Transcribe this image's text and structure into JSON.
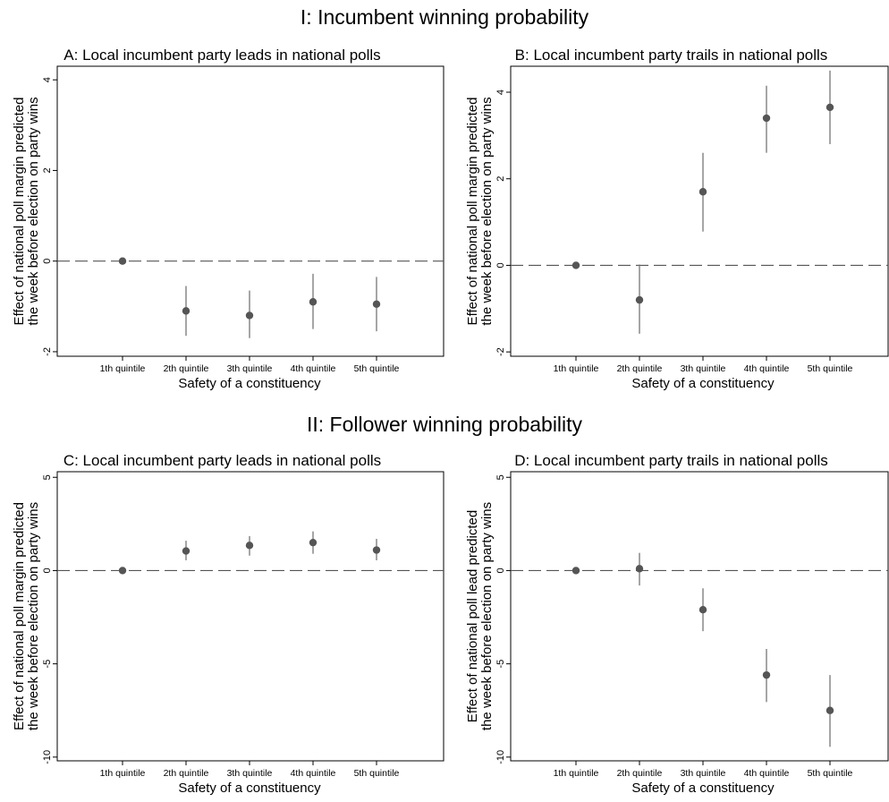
{
  "section_titles": {
    "top": "I: Incumbent winning probability",
    "bottom": "II: Follower winning probability"
  },
  "colors": {
    "marker": "#555555",
    "ci_line": "#777777",
    "zero_line": "#555555",
    "frame": "#000000"
  },
  "chart_data": [
    {
      "type": "scatter",
      "error_bars": true,
      "title": "A: Local incumbent party leads in national polls",
      "xlabel": "Safety of a constituency",
      "ylabel": [
        "Effect of national poll margin predicted",
        "the week before election on party wins"
      ],
      "categories": [
        "1th quintile",
        "2th quintile",
        "3th quintile",
        "4th quintile",
        "5th quintile"
      ],
      "values": [
        0.0,
        -1.1,
        -1.2,
        -0.9,
        -0.95
      ],
      "ci_low": [
        0.0,
        -1.65,
        -1.7,
        -1.5,
        -1.55
      ],
      "ci_high": [
        0.0,
        -0.55,
        -0.65,
        -0.28,
        -0.35
      ],
      "yticks": [
        -2,
        0,
        2,
        4
      ],
      "ytick_labels": [
        "-2",
        "0",
        "2",
        "4"
      ],
      "ylim": [
        -2.1,
        4.3
      ],
      "reference_line": 0,
      "grid": false
    },
    {
      "type": "scatter",
      "error_bars": true,
      "title": "B: Local incumbent party trails in national polls",
      "xlabel": "Safety of a constituency",
      "ylabel": [
        "Effect of national poll margin predicted",
        "the week before election on party wins"
      ],
      "categories": [
        "1th quintile",
        "2th quintile",
        "3th quintile",
        "4th quintile",
        "5th quintile"
      ],
      "values": [
        0.0,
        -0.8,
        1.7,
        3.4,
        3.65
      ],
      "ci_low": [
        0.0,
        -1.58,
        0.78,
        2.6,
        2.8
      ],
      "ci_high": [
        0.0,
        0.02,
        2.6,
        4.15,
        4.5
      ],
      "yticks": [
        -2,
        0,
        2,
        4
      ],
      "ytick_labels": [
        "-2",
        "0",
        "2",
        "4"
      ],
      "ylim": [
        -2.1,
        4.6
      ],
      "reference_line": 0,
      "grid": false
    },
    {
      "type": "scatter",
      "error_bars": true,
      "title": "C: Local incumbent party leads in national polls",
      "xlabel": "Safety of a constituency",
      "ylabel": [
        "Effect of national poll margin predicted",
        "the week before election on party wins"
      ],
      "categories": [
        "1th quintile",
        "2th quintile",
        "3th quintile",
        "4th quintile",
        "5th quintile"
      ],
      "values": [
        0.0,
        1.05,
        1.35,
        1.5,
        1.1
      ],
      "ci_low": [
        0.0,
        0.55,
        0.8,
        0.9,
        0.55
      ],
      "ci_high": [
        0.0,
        1.6,
        1.85,
        2.1,
        1.7
      ],
      "yticks": [
        -10,
        -5,
        0,
        5
      ],
      "ytick_labels": [
        "-10",
        "-5",
        "0",
        "5"
      ],
      "ylim": [
        -10.2,
        5.3
      ],
      "reference_line": 0,
      "grid": false
    },
    {
      "type": "scatter",
      "error_bars": true,
      "title": "D: Local incumbent party trails in national polls",
      "xlabel": "Safety of a constituency",
      "ylabel": [
        "Effect of national poll lead predicted",
        "the week before election on party wins"
      ],
      "categories": [
        "1th quintile",
        "2th quintile",
        "3th quintile",
        "4th quintile",
        "5th quintile"
      ],
      "values": [
        0.0,
        0.1,
        -2.1,
        -5.6,
        -7.5
      ],
      "ci_low": [
        0.0,
        -0.8,
        -3.25,
        -7.05,
        -9.45
      ],
      "ci_high": [
        0.0,
        0.95,
        -0.95,
        -4.2,
        -5.6
      ],
      "yticks": [
        -10,
        -5,
        0,
        5
      ],
      "ytick_labels": [
        "-10",
        "-5",
        "0",
        "5"
      ],
      "ylim": [
        -10.2,
        5.3
      ],
      "reference_line": 0,
      "grid": false
    }
  ]
}
